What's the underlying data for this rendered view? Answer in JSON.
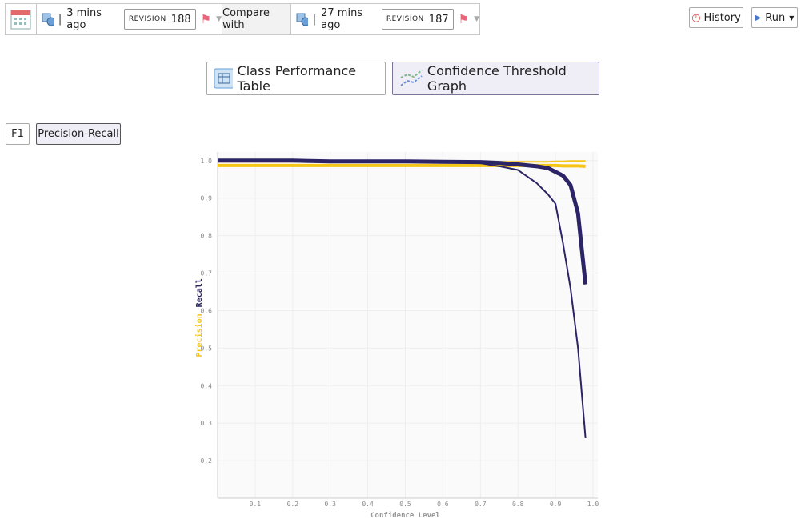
{
  "toolbar": {
    "current": {
      "time": "3 mins ago",
      "revision_label": "REVISION",
      "revision": "188"
    },
    "compare_label": "Compare with",
    "baseline": {
      "time": "27 mins ago",
      "revision_label": "REVISION",
      "revision": "187"
    },
    "history": "History",
    "run": "Run"
  },
  "tabs": [
    "Class Performance Table",
    "Confidence Threshold Graph"
  ],
  "metric_buttons": [
    "F1",
    "Precision-Recall"
  ],
  "chart_data": {
    "type": "line",
    "x_label": "Confidence Level",
    "y_labels": [
      {
        "text": "Precision",
        "color": "#f5c518"
      },
      {
        "text": "Recall",
        "color": "#2b2466"
      }
    ],
    "x": [
      0,
      0.1,
      0.2,
      0.3,
      0.4,
      0.5,
      0.6,
      0.7,
      0.75,
      0.8,
      0.85,
      0.88,
      0.9,
      0.92,
      0.94,
      0.96,
      0.98
    ],
    "series": [
      {
        "color": "#f5c518",
        "width": 2,
        "values": [
          0.997,
          0.997,
          0.997,
          0.997,
          0.997,
          0.997,
          0.997,
          0.997,
          0.997,
          0.997,
          0.997,
          0.997,
          0.998,
          0.998,
          0.999,
          0.999,
          0.999
        ]
      },
      {
        "color": "#f5c518",
        "width": 4,
        "values": [
          0.987,
          0.987,
          0.987,
          0.987,
          0.987,
          0.987,
          0.987,
          0.987,
          0.987,
          0.987,
          0.987,
          0.987,
          0.987,
          0.986,
          0.986,
          0.986,
          0.985
        ]
      },
      {
        "color": "#2b2466",
        "width": 2,
        "values": [
          1.0,
          1.0,
          1.0,
          0.998,
          0.998,
          0.998,
          0.997,
          0.993,
          0.985,
          0.975,
          0.94,
          0.91,
          0.885,
          0.78,
          0.66,
          0.5,
          0.26
        ]
      },
      {
        "color": "#2b2466",
        "width": 5,
        "values": [
          1.0,
          1.0,
          1.0,
          0.998,
          0.998,
          0.998,
          0.997,
          0.996,
          0.994,
          0.99,
          0.985,
          0.98,
          0.97,
          0.96,
          0.935,
          0.86,
          0.67
        ]
      }
    ],
    "xlim": [
      0,
      1.0
    ],
    "ylim": [
      0.1,
      1.023
    ],
    "xticks": [
      0.1,
      0.2,
      0.3,
      0.4,
      0.5,
      0.6,
      0.7,
      0.8,
      0.9,
      {
        "value": 1,
        "label": "1.0"
      }
    ],
    "yticks": [
      0.2,
      0.3,
      0.4,
      0.5,
      0.6,
      0.7,
      0.8,
      0.9,
      {
        "value": 1,
        "label": "1.0"
      }
    ],
    "grid": true
  }
}
